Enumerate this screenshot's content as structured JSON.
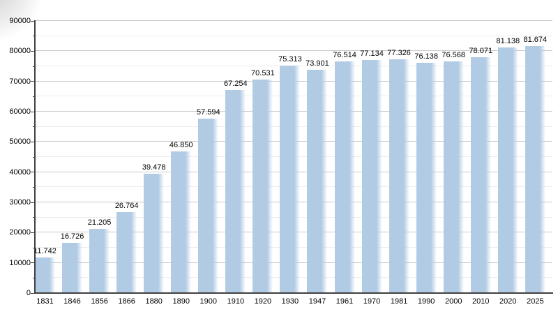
{
  "chart_data": {
    "type": "bar",
    "title": "",
    "xlabel": "",
    "ylabel": "",
    "categories": [
      "1831",
      "1846",
      "1856",
      "1866",
      "1880",
      "1890",
      "1900",
      "1910",
      "1920",
      "1930",
      "1947",
      "1961",
      "1970",
      "1981",
      "1990",
      "2000",
      "2010",
      "2020",
      "2025"
    ],
    "values": [
      11742,
      16726,
      21205,
      26764,
      39478,
      46850,
      57594,
      67254,
      70531,
      75313,
      73901,
      76514,
      77134,
      77326,
      76138,
      76568,
      78071,
      81138,
      81674
    ],
    "value_labels": [
      "11.742",
      "16.726",
      "21.205",
      "26.764",
      "39.478",
      "46.850",
      "57.594",
      "67.254",
      "70.531",
      "75.313",
      "73.901",
      "76.514",
      "77.134",
      "77.326",
      "76.138",
      "76.568",
      "78.071",
      "81.138",
      "81.674"
    ],
    "ylim": [
      0,
      90000
    ],
    "y_major_step": 10000,
    "y_minor_step": 5000,
    "y_tick_labels": [
      "0",
      "10000",
      "20000",
      "30000",
      "40000",
      "50000",
      "60000",
      "70000",
      "80000",
      "90000"
    ],
    "grid": "major and minor horizontal gridlines",
    "legend": "none",
    "colors": {
      "bar": "#b2cbe5",
      "grid_major": "#c9c9c9",
      "grid_minor": "#ececec",
      "axis": "#404040",
      "text": "#000000",
      "background": "#ffffff"
    }
  }
}
